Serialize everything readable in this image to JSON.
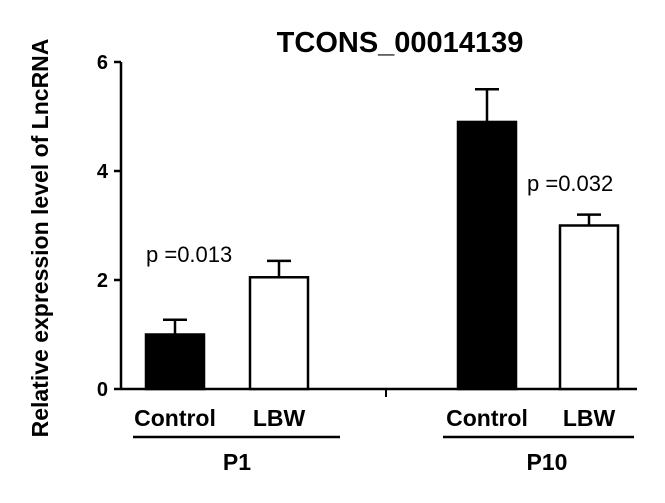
{
  "chart_data": {
    "type": "bar",
    "title": "TCONS_00014139",
    "ylabel": "Relative expression level of LncRNA",
    "xlabel": "",
    "ylim": [
      0,
      6
    ],
    "yticks": [
      0,
      2,
      4,
      6
    ],
    "groups": [
      {
        "label": "P1",
        "bars": [
          {
            "label": "Control",
            "value": 1.0,
            "error": 0.27,
            "fill": "#000000"
          },
          {
            "label": "LBW",
            "value": 2.05,
            "error": 0.3,
            "fill": "#ffffff"
          }
        ],
        "annotation": "p =0.013"
      },
      {
        "label": "P10",
        "bars": [
          {
            "label": "Control",
            "value": 4.9,
            "error": 0.6,
            "fill": "#000000"
          },
          {
            "label": "LBW",
            "value": 3.0,
            "error": 0.2,
            "fill": "#ffffff"
          }
        ],
        "annotation": "p =0.032"
      }
    ],
    "grid": false,
    "legend": "none"
  }
}
